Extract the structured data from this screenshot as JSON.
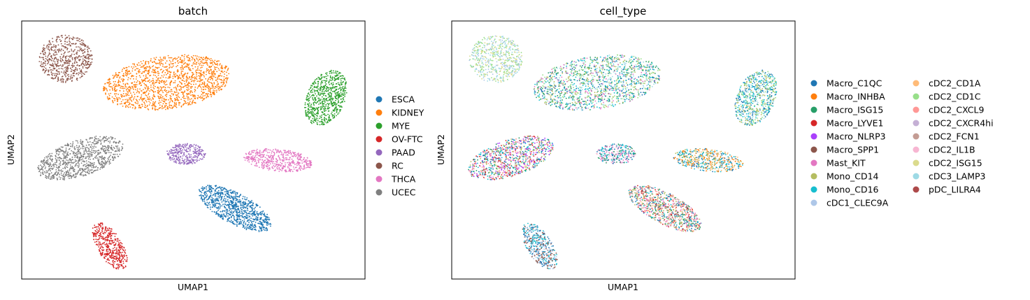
{
  "chart_data": [
    {
      "type": "scatter",
      "title": "batch",
      "xlabel": "UMAP1",
      "ylabel": "UMAP2",
      "grid": false,
      "legend": "right-outside",
      "axis_ticks": false,
      "series": [
        {
          "name": "ESCA",
          "color": "#1f77b4",
          "clusters": [
            {
              "x": 0.62,
              "y": 0.31
            }
          ]
        },
        {
          "name": "KIDNEY",
          "color": "#ff7f0e",
          "clusters": [
            {
              "x": 0.35,
              "y": 0.79
            }
          ]
        },
        {
          "name": "MYE",
          "color": "#2ca02c",
          "clusters": [
            {
              "x": 0.93,
              "y": 0.73
            }
          ]
        },
        {
          "name": "OV-FTC",
          "color": "#d62728",
          "clusters": [
            {
              "x": 0.26,
              "y": 0.16
            }
          ]
        },
        {
          "name": "PAAD",
          "color": "#9467bd",
          "clusters": [
            {
              "x": 0.46,
              "y": 0.49
            }
          ]
        },
        {
          "name": "RC",
          "color": "#8c564b",
          "clusters": [
            {
              "x": 0.14,
              "y": 0.89
            }
          ]
        },
        {
          "name": "THCA",
          "color": "#e377c2",
          "clusters": [
            {
              "x": 0.77,
              "y": 0.47
            }
          ]
        },
        {
          "name": "UCEC",
          "color": "#7f7f7f",
          "clusters": [
            {
              "x": 0.16,
              "y": 0.48
            }
          ]
        }
      ]
    },
    {
      "type": "scatter",
      "title": "cell_type",
      "xlabel": "UMAP1",
      "ylabel": "UMAP2",
      "grid": false,
      "legend": "right-outside",
      "axis_ticks": false,
      "series": [
        {
          "name": "Macro_C1QC",
          "color": "#1f77b4"
        },
        {
          "name": "Macro_INHBA",
          "color": "#ff7f0e"
        },
        {
          "name": "Macro_ISG15",
          "color": "#279e68"
        },
        {
          "name": "Macro_LYVE1",
          "color": "#d62728"
        },
        {
          "name": "Macro_NLRP3",
          "color": "#aa40fc"
        },
        {
          "name": "Macro_SPP1",
          "color": "#8c564b"
        },
        {
          "name": "Mast_KIT",
          "color": "#e377c2"
        },
        {
          "name": "Mono_CD14",
          "color": "#b5bd61"
        },
        {
          "name": "Mono_CD16",
          "color": "#17becf"
        },
        {
          "name": "cDC1_CLEC9A",
          "color": "#aec7e8"
        },
        {
          "name": "cDC2_CD1A",
          "color": "#ffbb78"
        },
        {
          "name": "cDC2_CD1C",
          "color": "#98df8a"
        },
        {
          "name": "cDC2_CXCL9",
          "color": "#ff9896"
        },
        {
          "name": "cDC2_CXCR4hi",
          "color": "#c5b0d5"
        },
        {
          "name": "cDC2_FCN1",
          "color": "#c49c94"
        },
        {
          "name": "cDC2_IL1B",
          "color": "#f7b6d2"
        },
        {
          "name": "cDC2_ISG15",
          "color": "#dbdb8d"
        },
        {
          "name": "cDC3_LAMP3",
          "color": "#9edae5"
        },
        {
          "name": "pDC_LILRA4",
          "color": "#ad494a"
        }
      ]
    }
  ]
}
